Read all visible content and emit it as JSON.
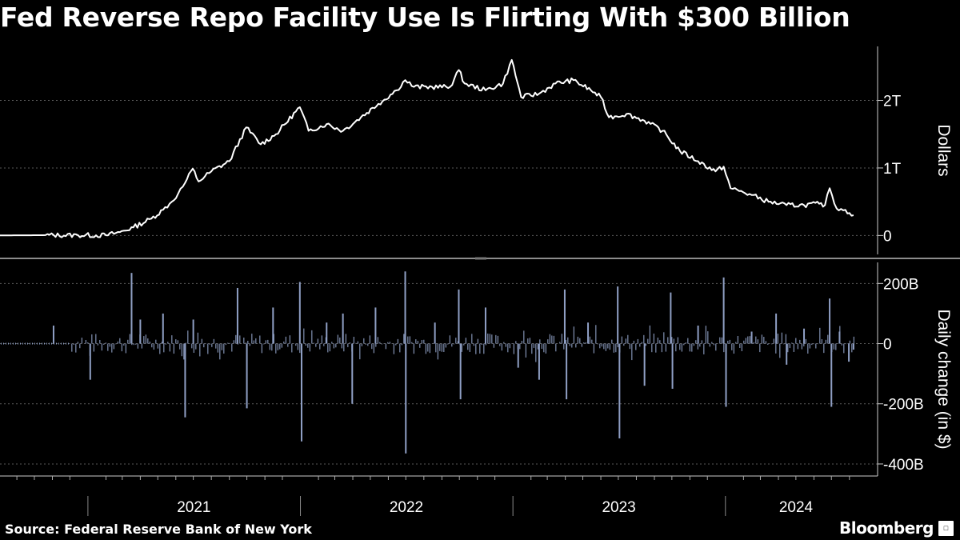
{
  "title": "Fed Reverse Repo Facility Use Is Flirting With $300 Billion",
  "source": "Source: Federal Reserve Bank of New York",
  "brand": "Bloomberg",
  "colors": {
    "background": "#000000",
    "line": "#ffffff",
    "bars": "#8f9fc4",
    "grid": "#555555",
    "axis": "#cccccc"
  },
  "icons": {
    "logo": "bloomberg-terminal-icon"
  },
  "chart_data": [
    {
      "type": "line",
      "ylabel": "Dollars",
      "yunit": "trillions of dollars",
      "ylim": [
        -0.28,
        2.8
      ],
      "yticks": [
        0,
        1,
        2
      ],
      "ytick_labels": [
        "0",
        "1T",
        "2T"
      ],
      "xlim": [
        "2020-08-03",
        "2024-08-15"
      ],
      "grid": "horizontal-dotted",
      "axis_position": "right",
      "series": [
        {
          "x": [
            "2020-08-03",
            "2020-09-15",
            "2020-10-20",
            "2020-12-15",
            "2021-02-01",
            "2021-02-25",
            "2021-03-20",
            "2021-04-20",
            "2021-05-10",
            "2021-05-25",
            "2021-06-05",
            "2021-06-17",
            "2021-06-30",
            "2021-07-10",
            "2021-08-01",
            "2021-09-01",
            "2021-09-30",
            "2021-10-25",
            "2021-11-20",
            "2021-12-31",
            "2022-01-15",
            "2022-02-15",
            "2022-03-15",
            "2022-04-15",
            "2022-05-15",
            "2022-06-15",
            "2022-06-30",
            "2022-07-15",
            "2022-08-15",
            "2022-09-15",
            "2022-09-30",
            "2022-10-10",
            "2022-11-15",
            "2022-12-15",
            "2022-12-30",
            "2023-01-15",
            "2023-02-15",
            "2023-03-15",
            "2023-04-15",
            "2023-05-15",
            "2023-06-01",
            "2023-06-15",
            "2023-07-15",
            "2023-08-15",
            "2023-09-15",
            "2023-10-15",
            "2023-11-15",
            "2023-12-15",
            "2023-12-29",
            "2024-01-10",
            "2024-02-15",
            "2024-03-15",
            "2024-04-15",
            "2024-05-15",
            "2024-06-10",
            "2024-06-20",
            "2024-06-28",
            "2024-07-10",
            "2024-07-25",
            "2024-08-08"
          ],
          "y": [
            0.002,
            0.003,
            0.005,
            0.004,
            0.003,
            0.05,
            0.12,
            0.25,
            0.38,
            0.5,
            0.62,
            0.78,
            0.99,
            0.8,
            0.95,
            1.1,
            1.6,
            1.35,
            1.5,
            1.9,
            1.55,
            1.65,
            1.55,
            1.75,
            1.95,
            2.15,
            2.3,
            2.2,
            2.2,
            2.2,
            2.45,
            2.25,
            2.15,
            2.25,
            2.6,
            2.05,
            2.1,
            2.25,
            2.3,
            2.15,
            2.05,
            1.75,
            1.8,
            1.7,
            1.55,
            1.25,
            1.1,
            0.95,
            1.02,
            0.7,
            0.6,
            0.5,
            0.45,
            0.45,
            0.47,
            0.45,
            0.7,
            0.4,
            0.38,
            0.3
          ]
        }
      ]
    },
    {
      "type": "bar",
      "ylabel": "Daily change (in $)",
      "yunit": "billions of dollars",
      "ylim": [
        -440,
        270
      ],
      "yticks": [
        -400,
        -200,
        0,
        200
      ],
      "ytick_labels": [
        "-400B",
        "-200B",
        "0",
        "200B"
      ],
      "xlim": [
        "2020-08-03",
        "2024-08-15"
      ],
      "xtick_labels": [
        "2021",
        "2022",
        "2023",
        "2024"
      ],
      "grid": "horizontal-dotted",
      "axis_position": "right",
      "series": [
        {
          "x": [
            "2020-11-03",
            "2021-01-05",
            "2021-03-17",
            "2021-04-01",
            "2021-05-10",
            "2021-06-17",
            "2021-07-01",
            "2021-09-15",
            "2021-10-01",
            "2021-11-15",
            "2021-12-31",
            "2022-01-03",
            "2022-02-15",
            "2022-03-15",
            "2022-03-31",
            "2022-05-10",
            "2022-06-30",
            "2022-07-01",
            "2022-08-20",
            "2022-09-30",
            "2022-10-03",
            "2022-11-15",
            "2023-01-10",
            "2023-02-15",
            "2023-03-31",
            "2023-04-03",
            "2023-05-10",
            "2023-06-30",
            "2023-07-03",
            "2023-08-15",
            "2023-09-29",
            "2023-10-02",
            "2023-11-15",
            "2023-12-29",
            "2024-01-02",
            "2024-02-15",
            "2024-03-28",
            "2024-04-15",
            "2024-05-15",
            "2024-06-28",
            "2024-07-01",
            "2024-07-15",
            "2024-07-31",
            "2024-08-08"
          ],
          "y": [
            60,
            -120,
            235,
            80,
            100,
            -245,
            80,
            185,
            -215,
            120,
            205,
            -325,
            70,
            100,
            -200,
            120,
            240,
            -365,
            70,
            180,
            -185,
            120,
            -80,
            -120,
            180,
            -185,
            70,
            190,
            -315,
            -140,
            170,
            -150,
            60,
            220,
            -210,
            40,
            100,
            -70,
            50,
            150,
            -210,
            40,
            -60,
            -20
          ]
        }
      ]
    }
  ]
}
